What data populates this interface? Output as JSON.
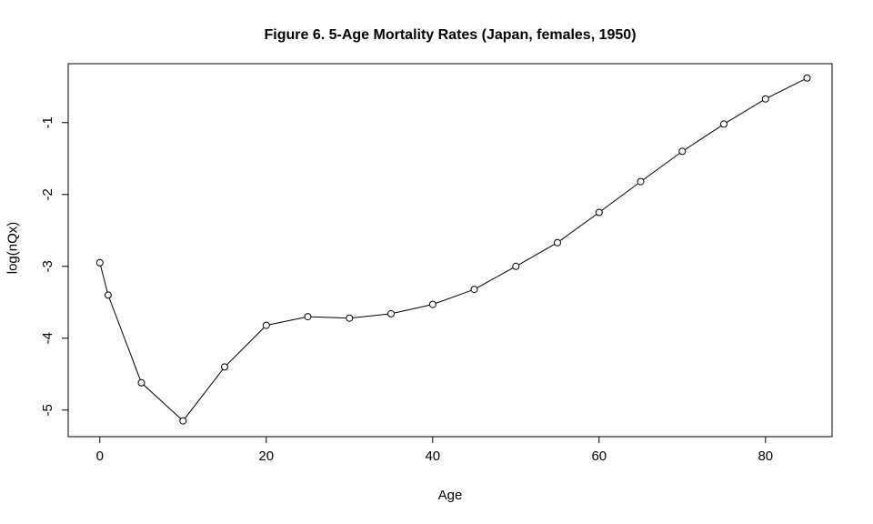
{
  "figure": {
    "title": "Figure 6. 5-Age Mortality Rates (Japan, females, 1950)",
    "xlabel": "Age",
    "ylabel": "log(nQx)"
  },
  "chart_data": {
    "type": "line",
    "title": "Figure 6. 5-Age Mortality Rates (Japan, females, 1950)",
    "xlabel": "Age",
    "ylabel": "log(nQx)",
    "x": [
      0,
      1,
      5,
      10,
      15,
      20,
      25,
      30,
      35,
      40,
      45,
      50,
      55,
      60,
      65,
      70,
      75,
      80,
      85
    ],
    "y": [
      -2.95,
      -3.4,
      -4.62,
      -5.15,
      -4.4,
      -3.82,
      -3.7,
      -3.72,
      -3.66,
      -3.53,
      -3.32,
      -3.0,
      -2.67,
      -2.25,
      -1.82,
      -1.4,
      -1.02,
      -0.67,
      -0.38
    ],
    "xlim": [
      -3.8,
      88
    ],
    "ylim": [
      -5.37,
      -0.18
    ],
    "xticks": [
      0,
      20,
      40,
      60,
      80
    ],
    "yticks": [
      -1,
      -2,
      -3,
      -4,
      -5
    ],
    "marker": "open-circle",
    "marker_color": "#000000",
    "line_color": "#000000",
    "background": "#ffffff",
    "grid": false,
    "legend": null
  }
}
